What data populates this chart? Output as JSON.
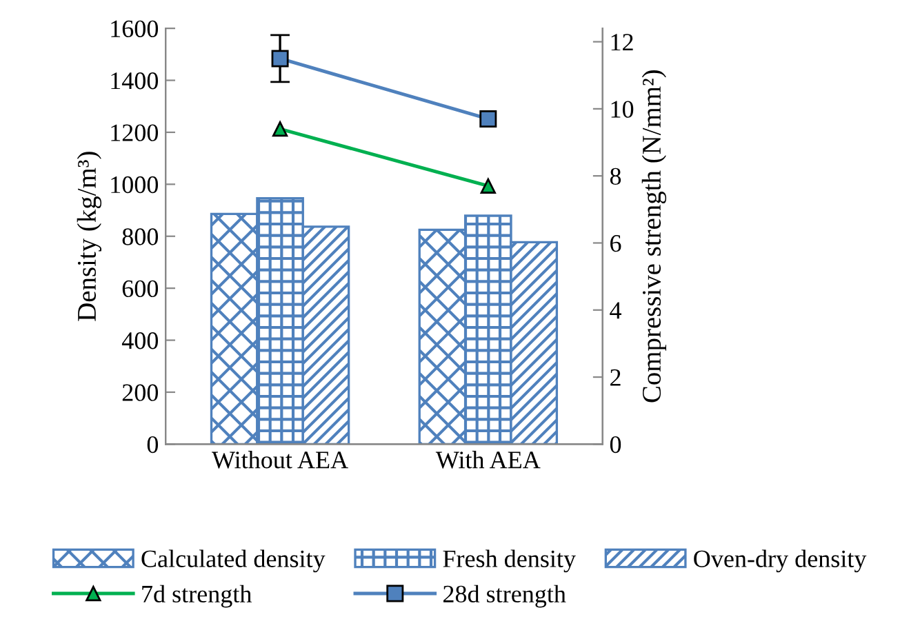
{
  "chart_data": {
    "type": "bar",
    "ylabel": "Density (kg/m³)",
    "y2label": "Compressive strength (N/mm²)",
    "categories": [
      "Without AEA",
      "With AEA"
    ],
    "series": [
      {
        "name": "Calculated density",
        "color": "#4f81bd",
        "values": [
          886,
          825
        ]
      },
      {
        "name": "Fresh density",
        "color": "#4f81bd",
        "values": [
          946,
          879
        ]
      },
      {
        "name": "Oven-dry density",
        "color": "#4f81bd",
        "values": [
          837,
          777
        ]
      },
      {
        "name": "7d strength",
        "type": "line",
        "axis": "y2",
        "color": "#00b050",
        "marker": "triangle",
        "values": [
          9.4,
          7.7
        ]
      },
      {
        "name": "28d strength",
        "type": "line",
        "axis": "y2",
        "color": "#4f81bd",
        "marker": "square",
        "values": [
          11.5,
          9.7
        ],
        "errors": [
          [
            10.8,
            12.2
          ],
          null
        ]
      }
    ],
    "ylim": [
      0,
      1600
    ],
    "yticks": [
      0,
      200,
      400,
      600,
      800,
      1000,
      1200,
      1400,
      1600
    ],
    "y2lim": [
      0,
      12.4
    ],
    "y2ticks": [
      0,
      2,
      4,
      6,
      8,
      10,
      12
    ],
    "grid": false,
    "legend": "bottom"
  }
}
